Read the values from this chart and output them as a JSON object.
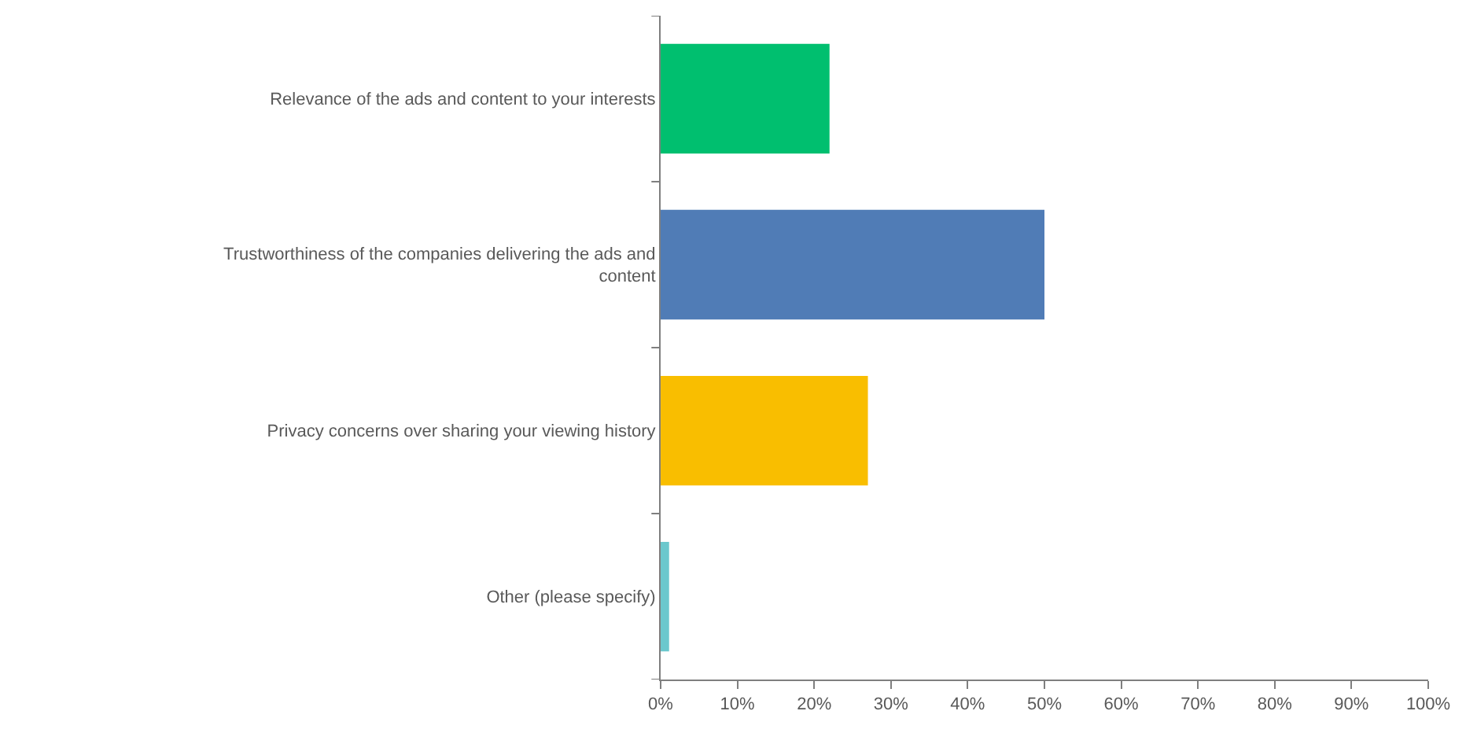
{
  "chart_data": {
    "type": "bar",
    "orientation": "horizontal",
    "categories": [
      "Relevance of the ads and content to your interests",
      "Trustworthiness of the companies delivering the ads and content",
      "Privacy concerns over sharing your viewing history",
      "Other (please specify)"
    ],
    "values": [
      22,
      50,
      27,
      1.1
    ],
    "colors": [
      "#00bf6f",
      "#507cb6",
      "#f9be00",
      "#6bc8cd"
    ],
    "xlim": [
      0,
      100
    ],
    "xticks": [
      {
        "value": 0,
        "label": "0%"
      },
      {
        "value": 10,
        "label": "10%"
      },
      {
        "value": 20,
        "label": "20%"
      },
      {
        "value": 30,
        "label": "30%"
      },
      {
        "value": 40,
        "label": "40%"
      },
      {
        "value": 50,
        "label": "50%"
      },
      {
        "value": 60,
        "label": "60%"
      },
      {
        "value": 70,
        "label": "70%"
      },
      {
        "value": 80,
        "label": "80%"
      },
      {
        "value": 90,
        "label": "90%"
      },
      {
        "value": 100,
        "label": "100%"
      }
    ],
    "tick_labels": true
  }
}
